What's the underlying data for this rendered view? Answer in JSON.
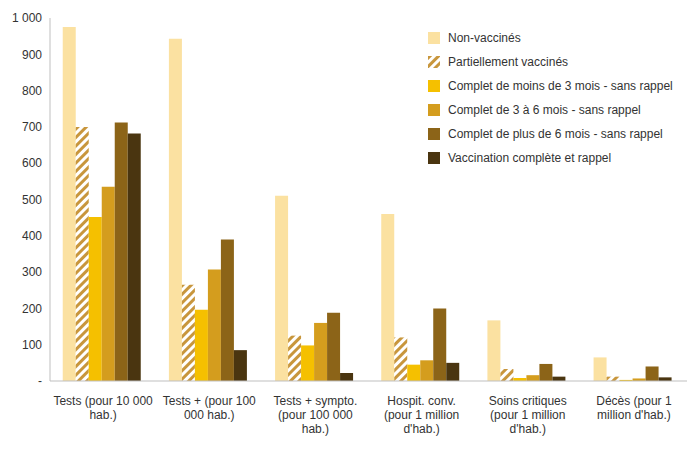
{
  "chart_data": {
    "type": "bar",
    "categories": [
      "Tests (pour 10 000 hab.)",
      "Tests + (pour 100 000 hab.)",
      "Tests + sympto. (pour 100 000 hab.)",
      "Hospit. conv. (pour 1 million d'hab.)",
      "Soins critiques (pour 1 million d'hab.)",
      "Décès (pour 1 million d'hab.)"
    ],
    "series": [
      {
        "name": "Non-vaccinés",
        "color": "#fbe1a1",
        "values": [
          975,
          943,
          510,
          460,
          167,
          65
        ]
      },
      {
        "name": "Partiellement vaccinés",
        "color": "#c8963c",
        "line_style": "hatched",
        "values": [
          700,
          265,
          125,
          120,
          33,
          12
        ]
      },
      {
        "name": "Complet de moins de 3 mois - sans rappel",
        "color": "#f5c000",
        "values": [
          452,
          196,
          98,
          45,
          8,
          3
        ]
      },
      {
        "name": "Complet de 3 à 6 mois - sans rappel",
        "color": "#d49d1e",
        "values": [
          535,
          307,
          160,
          57,
          16,
          7
        ]
      },
      {
        "name": "Complet de plus de 6 mois - sans rappel",
        "color": "#8c6418",
        "values": [
          712,
          390,
          188,
          200,
          47,
          40
        ]
      },
      {
        "name": "Vaccination complète et rappel",
        "color": "#4a3510",
        "values": [
          682,
          85,
          22,
          50,
          12,
          10
        ]
      }
    ],
    "ylim": [
      0,
      1000
    ],
    "yticks": [
      {
        "value": 0,
        "label": "-"
      },
      100,
      200,
      300,
      400,
      500,
      600,
      700,
      800,
      900,
      {
        "value": 1000,
        "label": "1 000"
      }
    ],
    "grid": false,
    "legend": "top-right"
  }
}
